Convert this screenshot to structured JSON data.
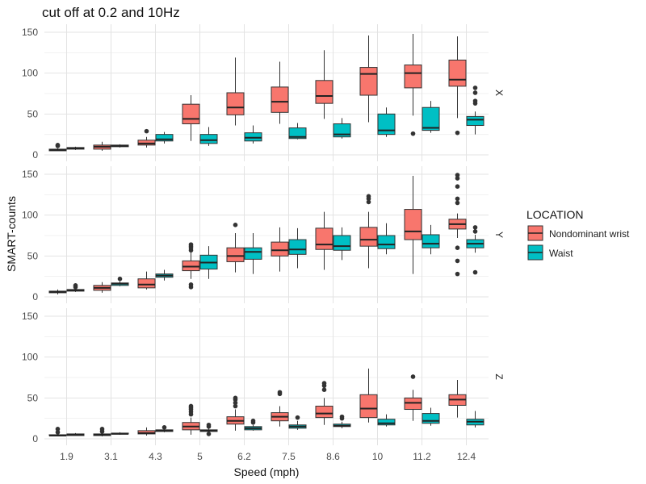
{
  "chart_data": {
    "type": "box",
    "title": "cut off at 0.2 and 10Hz",
    "xlabel": "Speed (mph)",
    "ylabel": "SMART-counts",
    "categories": [
      "1.9",
      "3.1",
      "4.3",
      "5",
      "6.2",
      "7.5",
      "8.6",
      "10",
      "11.2",
      "12.4"
    ],
    "ylim": [
      0,
      150
    ],
    "y_ticks": [
      0,
      50,
      100,
      150
    ],
    "grid": true,
    "legend": {
      "title": "LOCATION",
      "position": "right",
      "entries": [
        {
          "name": "Nondominant wrist",
          "color": "#F8766D"
        },
        {
          "name": "Waist",
          "color": "#00BFC4"
        }
      ]
    },
    "facets": [
      {
        "label": "X",
        "series": [
          {
            "name": "Nondominant wrist",
            "color": "#F8766D",
            "boxes": [
              {
                "min": 5,
                "q1": 5,
                "median": 6,
                "q3": 7,
                "max": 8,
                "outliers": [
                  11,
                  12
                ]
              },
              {
                "min": 5,
                "q1": 7,
                "median": 10,
                "q3": 12,
                "max": 16,
                "outliers": []
              },
              {
                "min": 9,
                "q1": 12,
                "median": 14,
                "q3": 18,
                "max": 22,
                "outliers": [
                  29
                ]
              },
              {
                "min": 17,
                "q1": 38,
                "median": 44,
                "q3": 62,
                "max": 73,
                "outliers": []
              },
              {
                "min": 36,
                "q1": 49,
                "median": 58,
                "q3": 76,
                "max": 119,
                "outliers": []
              },
              {
                "min": 38,
                "q1": 52,
                "median": 65,
                "q3": 83,
                "max": 114,
                "outliers": []
              },
              {
                "min": 44,
                "q1": 63,
                "median": 72,
                "q3": 91,
                "max": 128,
                "outliers": []
              },
              {
                "min": 40,
                "q1": 73,
                "median": 99,
                "q3": 107,
                "max": 146,
                "outliers": []
              },
              {
                "min": 48,
                "q1": 82,
                "median": 100,
                "q3": 110,
                "max": 148,
                "outliers": [
                  26
                ]
              },
              {
                "min": 45,
                "q1": 84,
                "median": 92,
                "q3": 116,
                "max": 145,
                "outliers": [
                  27
                ]
              }
            ]
          },
          {
            "name": "Waist",
            "color": "#00BFC4",
            "boxes": [
              {
                "min": 6,
                "q1": 7,
                "median": 8,
                "q3": 9,
                "max": 10,
                "outliers": []
              },
              {
                "min": 9,
                "q1": 10,
                "median": 11,
                "q3": 12,
                "max": 13,
                "outliers": []
              },
              {
                "min": 14,
                "q1": 17,
                "median": 19,
                "q3": 25,
                "max": 28,
                "outliers": []
              },
              {
                "min": 11,
                "q1": 14,
                "median": 18,
                "q3": 25,
                "max": 34,
                "outliers": []
              },
              {
                "min": 14,
                "q1": 17,
                "median": 21,
                "q3": 27,
                "max": 36,
                "outliers": []
              },
              {
                "min": 19,
                "q1": 20,
                "median": 22,
                "q3": 33,
                "max": 39,
                "outliers": []
              },
              {
                "min": 20,
                "q1": 22,
                "median": 25,
                "q3": 38,
                "max": 45,
                "outliers": []
              },
              {
                "min": 22,
                "q1": 25,
                "median": 30,
                "q3": 50,
                "max": 58,
                "outliers": []
              },
              {
                "min": 27,
                "q1": 30,
                "median": 33,
                "q3": 58,
                "max": 66,
                "outliers": []
              },
              {
                "min": 25,
                "q1": 36,
                "median": 43,
                "q3": 47,
                "max": 53,
                "outliers": [
                  63,
                  66,
                  76,
                  82
                ]
              }
            ]
          }
        ]
      },
      {
        "label": "Y",
        "series": [
          {
            "name": "Nondominant wrist",
            "color": "#F8766D",
            "boxes": [
              {
                "min": 3,
                "q1": 5,
                "median": 6,
                "q3": 7,
                "max": 9,
                "outliers": []
              },
              {
                "min": 5,
                "q1": 8,
                "median": 11,
                "q3": 14,
                "max": 18,
                "outliers": []
              },
              {
                "min": 9,
                "q1": 11,
                "median": 15,
                "q3": 22,
                "max": 31,
                "outliers": []
              },
              {
                "min": 22,
                "q1": 32,
                "median": 37,
                "q3": 44,
                "max": 56,
                "outliers": [
                  12,
                  15,
                  57,
                  60,
                  62,
                  64
                ]
              },
              {
                "min": 30,
                "q1": 43,
                "median": 50,
                "q3": 60,
                "max": 78,
                "outliers": [
                  88
                ]
              },
              {
                "min": 31,
                "q1": 50,
                "median": 57,
                "q3": 67,
                "max": 85,
                "outliers": []
              },
              {
                "min": 33,
                "q1": 58,
                "median": 64,
                "q3": 84,
                "max": 104,
                "outliers": []
              },
              {
                "min": 35,
                "q1": 62,
                "median": 70,
                "q3": 85,
                "max": 104,
                "outliers": [
                  116,
                  120,
                  123
                ]
              },
              {
                "min": 28,
                "q1": 70,
                "median": 80,
                "q3": 107,
                "max": 148,
                "outliers": []
              },
              {
                "min": 72,
                "q1": 83,
                "median": 89,
                "q3": 95,
                "max": 102,
                "outliers": [
                  28,
                  44,
                  60,
                  115,
                  120,
                  135,
                  145,
                  149
                ]
              }
            ]
          },
          {
            "name": "Waist",
            "color": "#00BFC4",
            "boxes": [
              {
                "min": 6,
                "q1": 7,
                "median": 8,
                "q3": 9,
                "max": 10,
                "outliers": [
                  12,
                  14
                ]
              },
              {
                "min": 13,
                "q1": 14,
                "median": 16,
                "q3": 17,
                "max": 19,
                "outliers": [
                  22
                ]
              },
              {
                "min": 20,
                "q1": 24,
                "median": 26,
                "q3": 28,
                "max": 33,
                "outliers": []
              },
              {
                "min": 22,
                "q1": 34,
                "median": 42,
                "q3": 51,
                "max": 62,
                "outliers": []
              },
              {
                "min": 28,
                "q1": 46,
                "median": 55,
                "q3": 60,
                "max": 78,
                "outliers": []
              },
              {
                "min": 35,
                "q1": 52,
                "median": 58,
                "q3": 70,
                "max": 84,
                "outliers": []
              },
              {
                "min": 45,
                "q1": 57,
                "median": 62,
                "q3": 75,
                "max": 85,
                "outliers": []
              },
              {
                "min": 52,
                "q1": 59,
                "median": 64,
                "q3": 75,
                "max": 90,
                "outliers": []
              },
              {
                "min": 52,
                "q1": 60,
                "median": 65,
                "q3": 76,
                "max": 88,
                "outliers": []
              },
              {
                "min": 54,
                "q1": 60,
                "median": 65,
                "q3": 70,
                "max": 76,
                "outliers": [
                  30,
                  80,
                  85
                ]
              }
            ]
          }
        ]
      },
      {
        "label": "Z",
        "series": [
          {
            "name": "Nondominant wrist",
            "color": "#F8766D",
            "boxes": [
              {
                "min": 3,
                "q1": 4,
                "median": 4,
                "q3": 5,
                "max": 6,
                "outliers": [
                  8,
                  12
                ]
              },
              {
                "min": 3,
                "q1": 4,
                "median": 5,
                "q3": 6,
                "max": 8,
                "outliers": [
                  9,
                  12
                ]
              },
              {
                "min": 4,
                "q1": 6,
                "median": 7,
                "q3": 10,
                "max": 14,
                "outliers": []
              },
              {
                "min": 5,
                "q1": 11,
                "median": 15,
                "q3": 20,
                "max": 26,
                "outliers": [
                  30,
                  33,
                  36,
                  38,
                  40
                ]
              },
              {
                "min": 10,
                "q1": 18,
                "median": 22,
                "q3": 27,
                "max": 36,
                "outliers": [
                  40,
                  44,
                  48,
                  50
                ]
              },
              {
                "min": 15,
                "q1": 22,
                "median": 27,
                "q3": 32,
                "max": 40,
                "outliers": [
                  55,
                  57
                ]
              },
              {
                "min": 17,
                "q1": 26,
                "median": 31,
                "q3": 40,
                "max": 50,
                "outliers": [
                  60,
                  65,
                  68
                ]
              },
              {
                "min": 20,
                "q1": 26,
                "median": 37,
                "q3": 54,
                "max": 86,
                "outliers": []
              },
              {
                "min": 22,
                "q1": 36,
                "median": 44,
                "q3": 50,
                "max": 60,
                "outliers": [
                  76
                ]
              },
              {
                "min": 26,
                "q1": 41,
                "median": 48,
                "q3": 54,
                "max": 72,
                "outliers": []
              }
            ]
          },
          {
            "name": "Waist",
            "color": "#00BFC4",
            "boxes": [
              {
                "min": 4,
                "q1": 4,
                "median": 5,
                "q3": 6,
                "max": 7,
                "outliers": []
              },
              {
                "min": 5,
                "q1": 6,
                "median": 6,
                "q3": 7,
                "max": 8,
                "outliers": []
              },
              {
                "min": 8,
                "q1": 9,
                "median": 10,
                "q3": 11,
                "max": 12,
                "outliers": [
                  14
                ]
              },
              {
                "min": 7,
                "q1": 9,
                "median": 10,
                "q3": 11,
                "max": 13,
                "outliers": [
                  6,
                  15,
                  17
                ]
              },
              {
                "min": 10,
                "q1": 11,
                "median": 13,
                "q3": 15,
                "max": 17,
                "outliers": [
                  20,
                  22
                ]
              },
              {
                "min": 11,
                "q1": 13,
                "median": 15,
                "q3": 17,
                "max": 22,
                "outliers": [
                  26
                ]
              },
              {
                "min": 13,
                "q1": 15,
                "median": 16,
                "q3": 18,
                "max": 21,
                "outliers": [
                  25,
                  27
                ]
              },
              {
                "min": 15,
                "q1": 17,
                "median": 19,
                "q3": 24,
                "max": 30,
                "outliers": []
              },
              {
                "min": 16,
                "q1": 19,
                "median": 22,
                "q3": 31,
                "max": 38,
                "outliers": []
              },
              {
                "min": 14,
                "q1": 17,
                "median": 21,
                "q3": 24,
                "max": 34,
                "outliers": []
              }
            ]
          }
        ]
      }
    ]
  }
}
